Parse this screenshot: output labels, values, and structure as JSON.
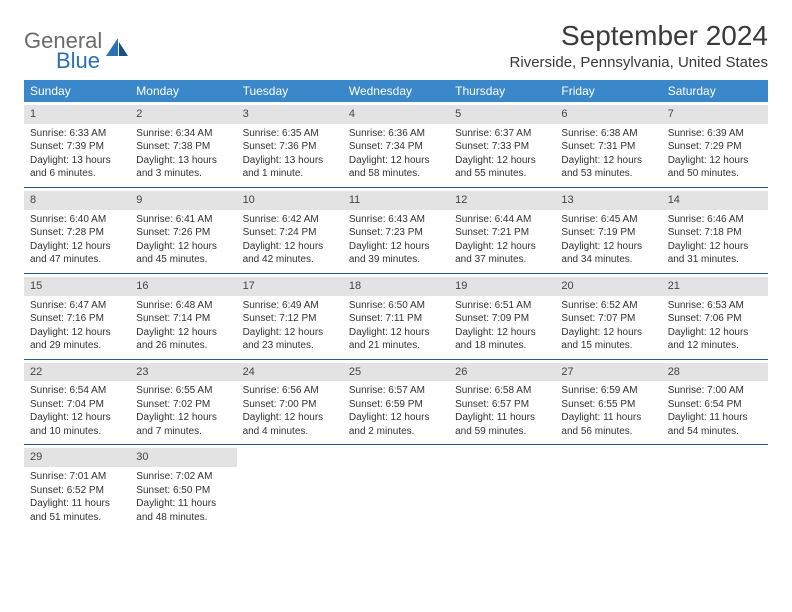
{
  "logo": {
    "text_general": "General",
    "text_blue": "Blue"
  },
  "title": "September 2024",
  "location": "Riverside, Pennsylvania, United States",
  "colors": {
    "header_bg": "#3a87c9",
    "header_fg": "#ffffff",
    "daynum_bg": "#e3e3e3",
    "row_border": "#2a5a8a",
    "logo_gray": "#6b6b6b",
    "logo_blue": "#2971b8"
  },
  "weekdays": [
    "Sunday",
    "Monday",
    "Tuesday",
    "Wednesday",
    "Thursday",
    "Friday",
    "Saturday"
  ],
  "calendar": {
    "type": "table",
    "columns": 7,
    "rows": 5,
    "days": [
      {
        "n": "1",
        "sr": "6:33 AM",
        "ss": "7:39 PM",
        "dl": "13 hours and 6 minutes."
      },
      {
        "n": "2",
        "sr": "6:34 AM",
        "ss": "7:38 PM",
        "dl": "13 hours and 3 minutes."
      },
      {
        "n": "3",
        "sr": "6:35 AM",
        "ss": "7:36 PM",
        "dl": "13 hours and 1 minute."
      },
      {
        "n": "4",
        "sr": "6:36 AM",
        "ss": "7:34 PM",
        "dl": "12 hours and 58 minutes."
      },
      {
        "n": "5",
        "sr": "6:37 AM",
        "ss": "7:33 PM",
        "dl": "12 hours and 55 minutes."
      },
      {
        "n": "6",
        "sr": "6:38 AM",
        "ss": "7:31 PM",
        "dl": "12 hours and 53 minutes."
      },
      {
        "n": "7",
        "sr": "6:39 AM",
        "ss": "7:29 PM",
        "dl": "12 hours and 50 minutes."
      },
      {
        "n": "8",
        "sr": "6:40 AM",
        "ss": "7:28 PM",
        "dl": "12 hours and 47 minutes."
      },
      {
        "n": "9",
        "sr": "6:41 AM",
        "ss": "7:26 PM",
        "dl": "12 hours and 45 minutes."
      },
      {
        "n": "10",
        "sr": "6:42 AM",
        "ss": "7:24 PM",
        "dl": "12 hours and 42 minutes."
      },
      {
        "n": "11",
        "sr": "6:43 AM",
        "ss": "7:23 PM",
        "dl": "12 hours and 39 minutes."
      },
      {
        "n": "12",
        "sr": "6:44 AM",
        "ss": "7:21 PM",
        "dl": "12 hours and 37 minutes."
      },
      {
        "n": "13",
        "sr": "6:45 AM",
        "ss": "7:19 PM",
        "dl": "12 hours and 34 minutes."
      },
      {
        "n": "14",
        "sr": "6:46 AM",
        "ss": "7:18 PM",
        "dl": "12 hours and 31 minutes."
      },
      {
        "n": "15",
        "sr": "6:47 AM",
        "ss": "7:16 PM",
        "dl": "12 hours and 29 minutes."
      },
      {
        "n": "16",
        "sr": "6:48 AM",
        "ss": "7:14 PM",
        "dl": "12 hours and 26 minutes."
      },
      {
        "n": "17",
        "sr": "6:49 AM",
        "ss": "7:12 PM",
        "dl": "12 hours and 23 minutes."
      },
      {
        "n": "18",
        "sr": "6:50 AM",
        "ss": "7:11 PM",
        "dl": "12 hours and 21 minutes."
      },
      {
        "n": "19",
        "sr": "6:51 AM",
        "ss": "7:09 PM",
        "dl": "12 hours and 18 minutes."
      },
      {
        "n": "20",
        "sr": "6:52 AM",
        "ss": "7:07 PM",
        "dl": "12 hours and 15 minutes."
      },
      {
        "n": "21",
        "sr": "6:53 AM",
        "ss": "7:06 PM",
        "dl": "12 hours and 12 minutes."
      },
      {
        "n": "22",
        "sr": "6:54 AM",
        "ss": "7:04 PM",
        "dl": "12 hours and 10 minutes."
      },
      {
        "n": "23",
        "sr": "6:55 AM",
        "ss": "7:02 PM",
        "dl": "12 hours and 7 minutes."
      },
      {
        "n": "24",
        "sr": "6:56 AM",
        "ss": "7:00 PM",
        "dl": "12 hours and 4 minutes."
      },
      {
        "n": "25",
        "sr": "6:57 AM",
        "ss": "6:59 PM",
        "dl": "12 hours and 2 minutes."
      },
      {
        "n": "26",
        "sr": "6:58 AM",
        "ss": "6:57 PM",
        "dl": "11 hours and 59 minutes."
      },
      {
        "n": "27",
        "sr": "6:59 AM",
        "ss": "6:55 PM",
        "dl": "11 hours and 56 minutes."
      },
      {
        "n": "28",
        "sr": "7:00 AM",
        "ss": "6:54 PM",
        "dl": "11 hours and 54 minutes."
      },
      {
        "n": "29",
        "sr": "7:01 AM",
        "ss": "6:52 PM",
        "dl": "11 hours and 51 minutes."
      },
      {
        "n": "30",
        "sr": "7:02 AM",
        "ss": "6:50 PM",
        "dl": "11 hours and 48 minutes."
      }
    ],
    "labels": {
      "sunrise": "Sunrise:",
      "sunset": "Sunset:",
      "daylight": "Daylight:"
    }
  }
}
